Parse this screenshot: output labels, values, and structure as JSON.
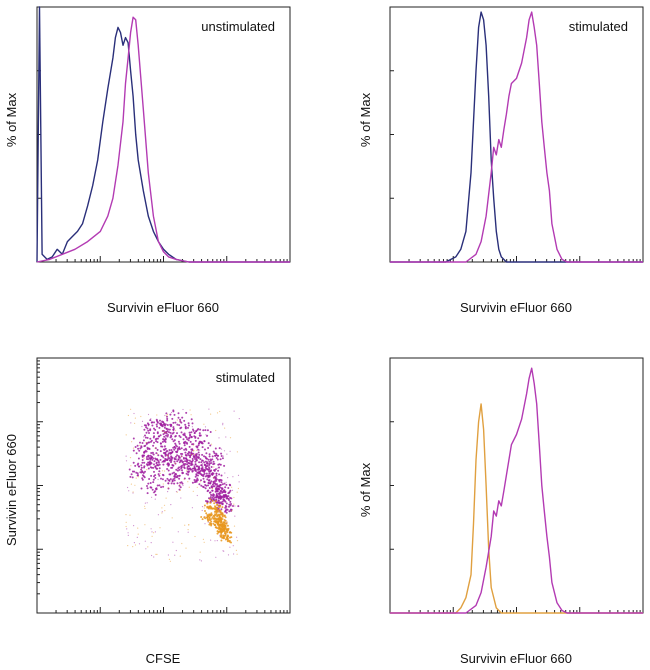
{
  "chart_data": [
    {
      "type": "line",
      "annotation": "unstimulated",
      "xlabel": "Survivin eFluor 660",
      "ylabel": "% of Max",
      "xlim": [
        0,
        100
      ],
      "ylim": [
        0,
        100
      ],
      "series": [
        {
          "color": "#2a2f7a",
          "x": [
            0,
            1,
            2,
            4,
            6,
            8,
            10,
            12,
            14,
            16,
            18,
            20,
            22,
            24,
            26,
            28,
            30,
            31,
            32,
            33,
            34,
            35,
            36,
            37,
            38,
            39,
            40,
            42,
            44,
            46,
            48,
            50,
            52,
            55,
            60,
            100
          ],
          "y": [
            0,
            100,
            3,
            1,
            2,
            5,
            3,
            8,
            10,
            12,
            15,
            22,
            30,
            40,
            55,
            68,
            80,
            88,
            92,
            90,
            85,
            88,
            86,
            75,
            65,
            50,
            40,
            28,
            18,
            12,
            8,
            5,
            3,
            1,
            0,
            0
          ]
        },
        {
          "color": "#b33bb3",
          "x": [
            0,
            5,
            10,
            15,
            20,
            25,
            28,
            30,
            32,
            34,
            35,
            36,
            37,
            38,
            39,
            40,
            42,
            44,
            46,
            48,
            50,
            52,
            55,
            60,
            100
          ],
          "y": [
            0,
            1,
            3,
            5,
            8,
            12,
            18,
            25,
            38,
            55,
            70,
            80,
            90,
            96,
            95,
            85,
            60,
            35,
            18,
            8,
            4,
            2,
            1,
            0,
            0
          ]
        }
      ]
    },
    {
      "type": "line",
      "annotation": "stimulated",
      "xlabel": "Survivin eFluor 660",
      "ylabel": "% of Max",
      "xlim": [
        0,
        100
      ],
      "ylim": [
        0,
        100
      ],
      "series": [
        {
          "color": "#2a2f7a",
          "x": [
            0,
            22,
            26,
            28,
            30,
            32,
            34,
            35,
            36,
            37,
            38,
            39,
            40,
            41,
            42,
            43,
            44,
            46,
            48,
            100
          ],
          "y": [
            0,
            0,
            2,
            5,
            12,
            35,
            75,
            92,
            98,
            95,
            85,
            65,
            40,
            25,
            12,
            5,
            2,
            0,
            0,
            0
          ]
        },
        {
          "color": "#b33bb3",
          "x": [
            0,
            30,
            34,
            36,
            38,
            40,
            41,
            42,
            43,
            44,
            45,
            46,
            47,
            48,
            50,
            52,
            54,
            55,
            56,
            57,
            58,
            59,
            60,
            61,
            62,
            63,
            64,
            66,
            68,
            70,
            100
          ],
          "y": [
            0,
            0,
            3,
            8,
            18,
            35,
            45,
            42,
            48,
            45,
            52,
            58,
            65,
            70,
            72,
            78,
            88,
            95,
            98,
            92,
            85,
            70,
            55,
            45,
            35,
            28,
            15,
            5,
            1,
            0,
            0
          ]
        }
      ]
    },
    {
      "type": "scatter",
      "annotation": "stimulated",
      "xlabel": "CFSE",
      "ylabel": "Survivin eFluor 660",
      "xlim": [
        0,
        100
      ],
      "ylim": [
        0,
        100
      ],
      "series": [
        {
          "color": "#a020a0",
          "x": [
            40,
            45,
            50,
            55,
            60,
            65,
            42,
            48,
            52,
            58,
            63,
            68,
            45,
            50,
            55,
            60,
            65,
            70,
            46,
            53,
            57,
            62,
            67,
            72,
            44,
            49,
            54,
            59,
            64,
            69,
            71,
            73,
            74,
            75,
            72,
            70
          ],
          "y": [
            55,
            60,
            62,
            58,
            60,
            55,
            65,
            68,
            70,
            67,
            63,
            58,
            72,
            74,
            75,
            72,
            68,
            62,
            50,
            52,
            55,
            54,
            52,
            50,
            58,
            60,
            63,
            61,
            59,
            55,
            47,
            45,
            44,
            42,
            46,
            48
          ]
        },
        {
          "color": "#e8961e",
          "x": [
            68,
            70,
            72,
            73,
            74,
            75,
            71,
            72,
            73,
            74,
            69,
            71,
            73
          ],
          "y": [
            38,
            36,
            35,
            33,
            32,
            30,
            40,
            37,
            34,
            31,
            42,
            39,
            36
          ]
        }
      ]
    },
    {
      "type": "line",
      "annotation": "",
      "xlabel": "Survivin eFluor 660",
      "ylabel": "% of Max",
      "xlim": [
        0,
        100
      ],
      "ylim": [
        0,
        100
      ],
      "series": [
        {
          "color": "#e0a040",
          "x": [
            0,
            26,
            28,
            30,
            32,
            33,
            34,
            35,
            36,
            37,
            38,
            39,
            40,
            42,
            44,
            46,
            48,
            100
          ],
          "y": [
            0,
            0,
            2,
            6,
            15,
            35,
            60,
            75,
            82,
            72,
            50,
            25,
            10,
            2,
            0,
            0,
            0,
            0
          ]
        },
        {
          "color": "#b33bb3",
          "x": [
            0,
            30,
            34,
            36,
            38,
            40,
            41,
            42,
            43,
            44,
            45,
            46,
            47,
            48,
            50,
            52,
            54,
            55,
            56,
            57,
            58,
            59,
            60,
            61,
            62,
            63,
            64,
            66,
            68,
            70,
            100
          ],
          "y": [
            0,
            0,
            3,
            8,
            18,
            30,
            40,
            38,
            44,
            42,
            48,
            54,
            60,
            66,
            70,
            76,
            86,
            92,
            96,
            90,
            82,
            66,
            50,
            40,
            30,
            22,
            12,
            4,
            1,
            0,
            0
          ]
        }
      ]
    }
  ]
}
